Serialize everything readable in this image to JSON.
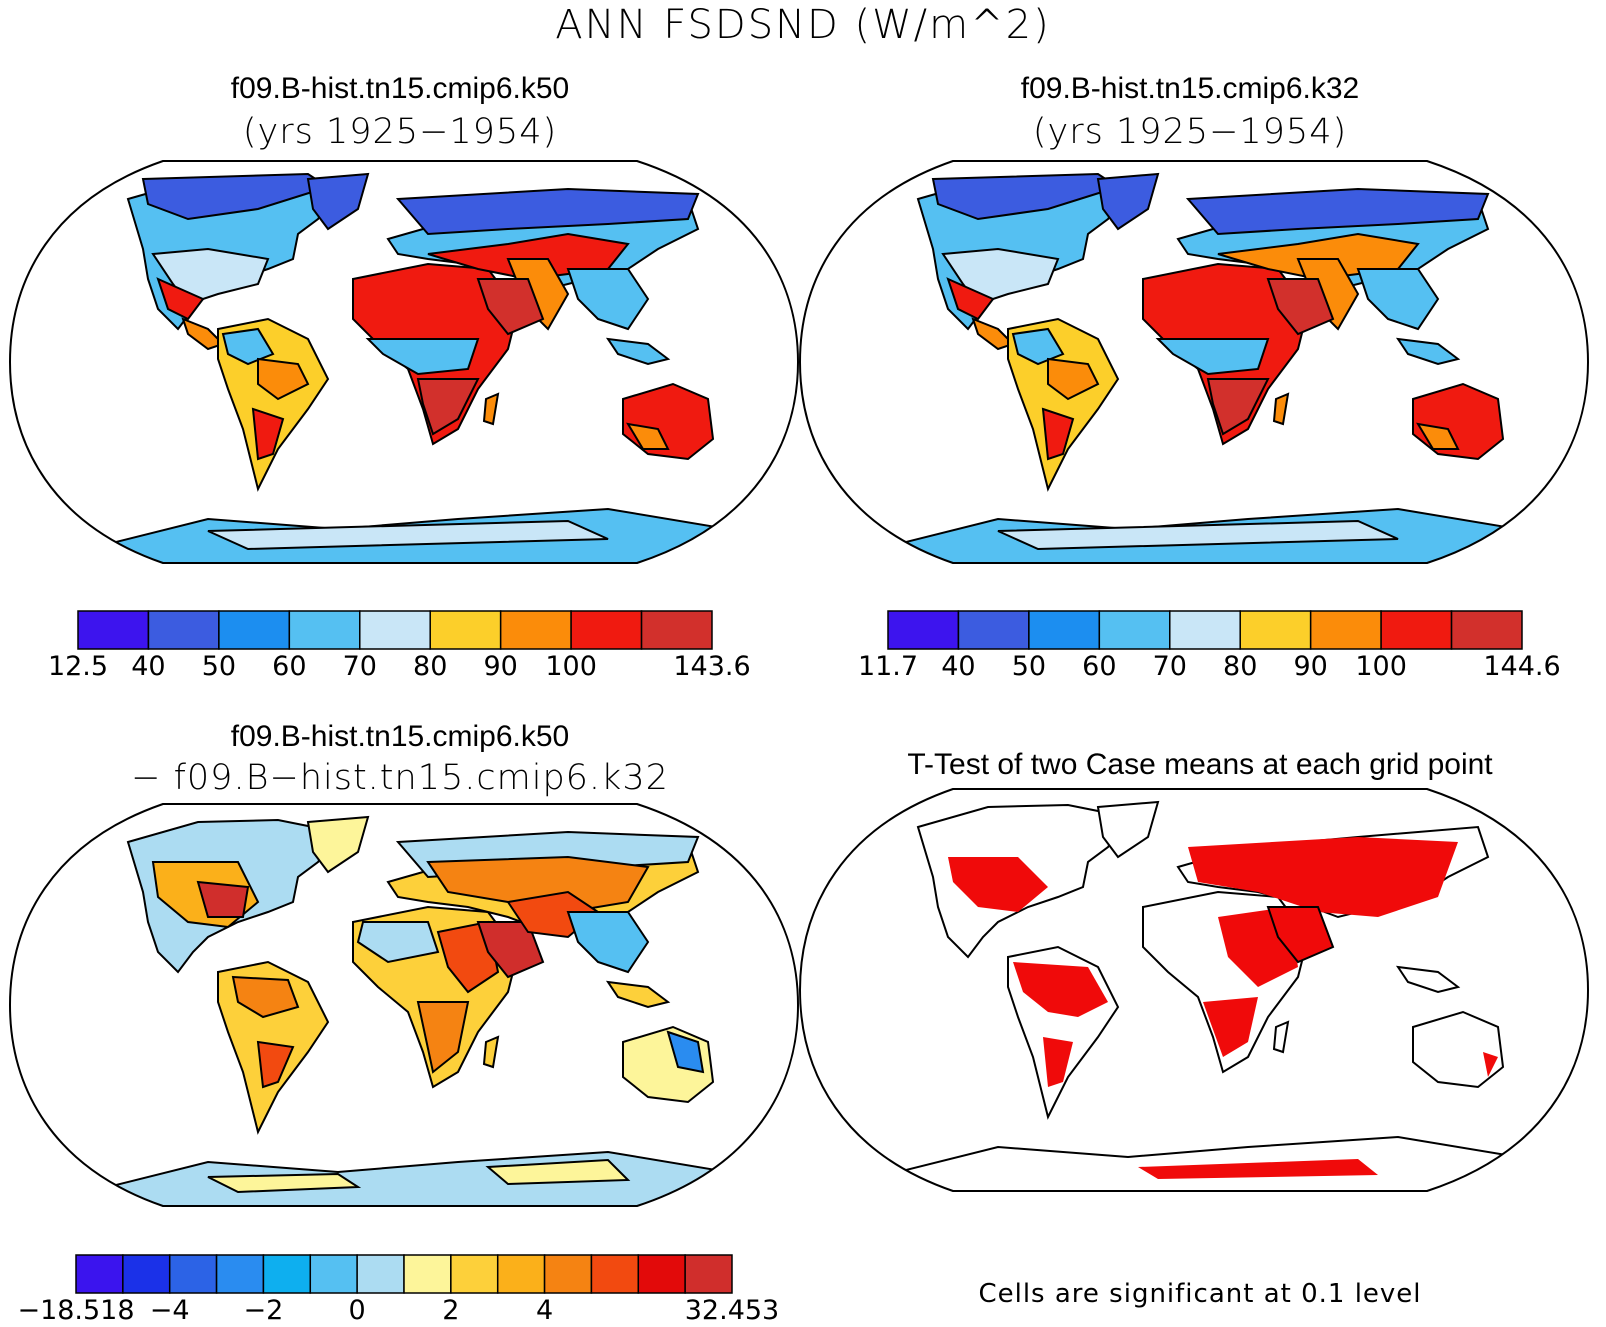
{
  "main_title": "ANN FSDSND (W/m^2)",
  "panels": {
    "top_left": {
      "title": "f09.B-hist.tn15.cmip6.k50",
      "subtitle": "(yrs 1925−1954)"
    },
    "top_right": {
      "title": "f09.B-hist.tn15.cmip6.k32",
      "subtitle": "(yrs 1925−1954)"
    },
    "bottom_left": {
      "title": "f09.B-hist.tn15.cmip6.k50",
      "subtitle": "− f09.B−hist.tn15.cmip6.k32"
    },
    "bottom_right": {
      "title": "T-Test of two Case means at each grid point",
      "footnote": "Cells are significant at 0.1 level"
    }
  },
  "colorbars": {
    "top_left": {
      "colors": [
        "#3d14ee",
        "#3c5ce0",
        "#1c8ef0",
        "#55c0f2",
        "#c9e6f7",
        "#fccf2a",
        "#fb8c0a",
        "#f01a10",
        "#d2302c"
      ],
      "labels": [
        "12.5",
        "40",
        "50",
        "60",
        "70",
        "80",
        "90",
        "100",
        "143.6"
      ]
    },
    "top_right": {
      "colors": [
        "#3d14ee",
        "#3c5ce0",
        "#1c8ef0",
        "#55c0f2",
        "#c9e6f7",
        "#fccf2a",
        "#fb8c0a",
        "#f01a10",
        "#d2302c"
      ],
      "labels": [
        "11.7",
        "40",
        "50",
        "60",
        "70",
        "80",
        "90",
        "100",
        "144.6"
      ]
    },
    "bottom_left": {
      "colors": [
        "#3b14ee",
        "#1b31e8",
        "#2c63e6",
        "#2a8cf0",
        "#0eafef",
        "#55c0f2",
        "#acdcf2",
        "#fdf59a",
        "#fdd03a",
        "#fbb01a",
        "#f58312",
        "#f24a10",
        "#e20a0a",
        "#d02e2c"
      ],
      "labels": [
        "−18.518",
        "−4",
        "−2",
        "0",
        "2",
        "4",
        "32.453"
      ]
    }
  },
  "map_colors": {
    "ocean": "#ffffff",
    "significant": "#f00a0a",
    "coast": "#000000"
  }
}
